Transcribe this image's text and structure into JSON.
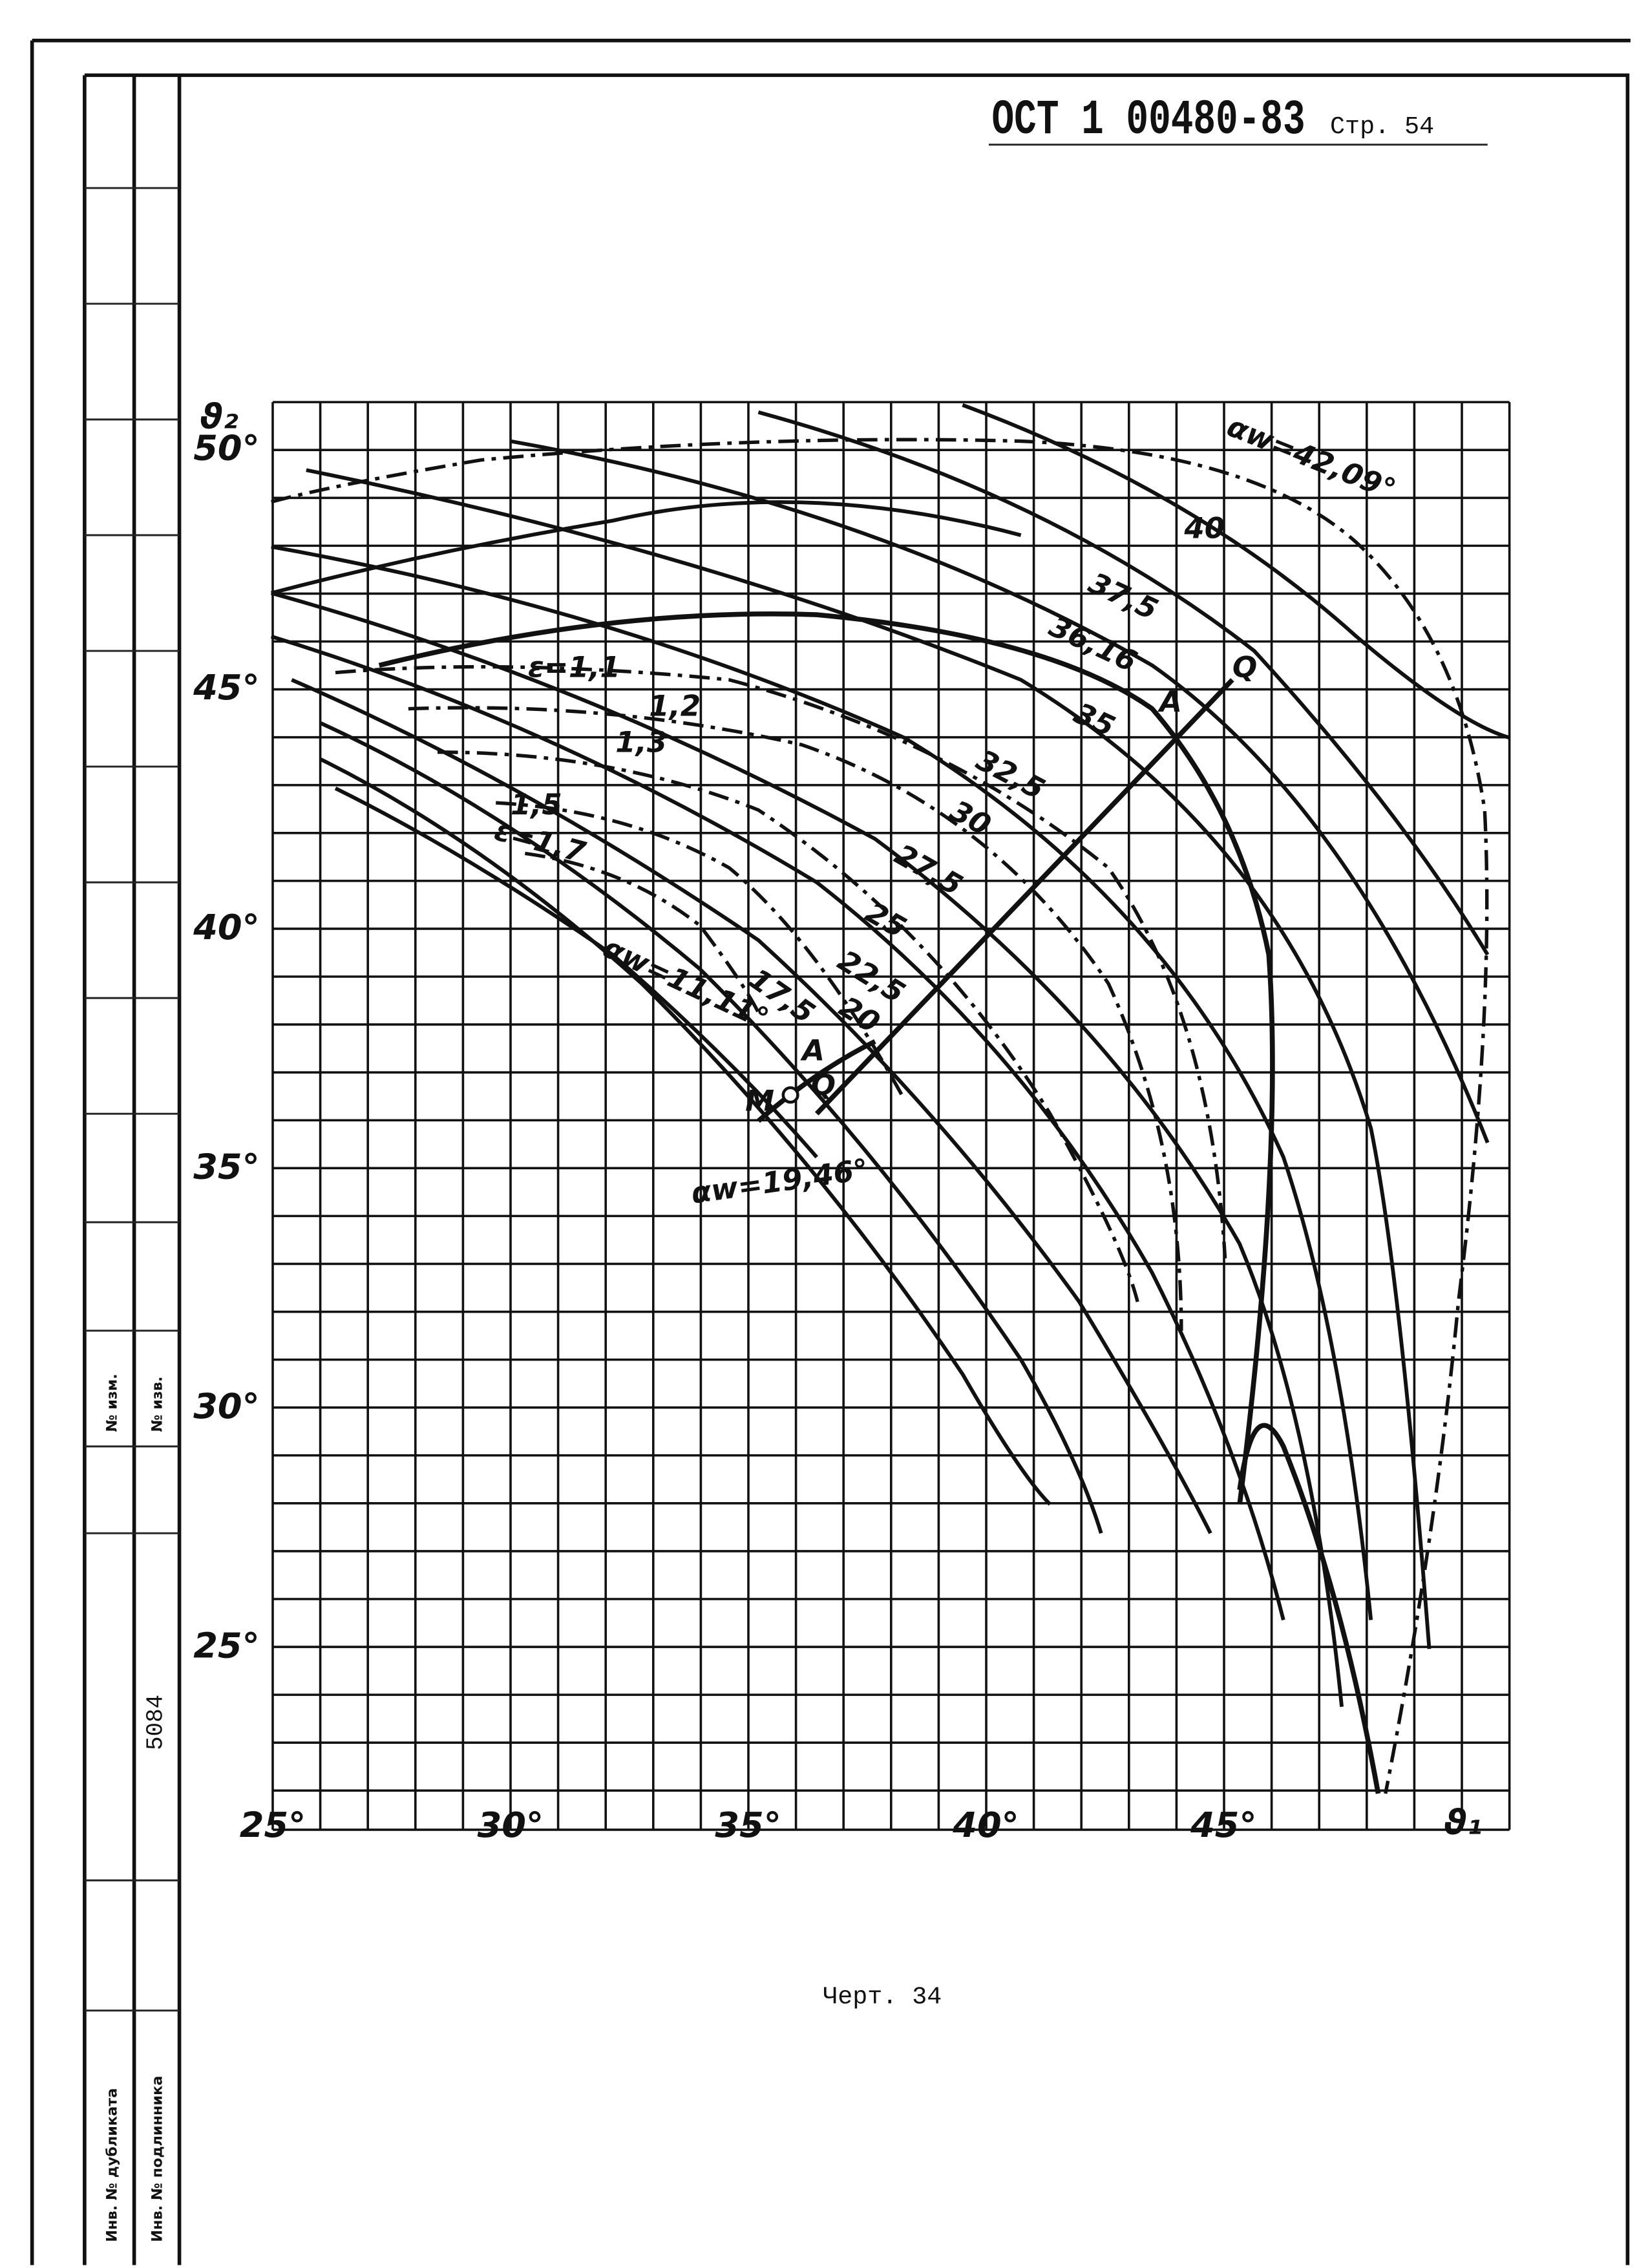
{
  "header": {
    "code": "ОСТ 1 00480-83",
    "page": "Стр. 54"
  },
  "axes": {
    "y_label": "ϑ₂",
    "x_label": "ϑ₁",
    "y_ticks": [
      "50°",
      "45°",
      "40°",
      "35°",
      "30°",
      "25°"
    ],
    "x_ticks": [
      "25°",
      "30°",
      "35°",
      "40°",
      "45°"
    ]
  },
  "curve_labels": {
    "alpha": [
      "αw=42,09°",
      "40",
      "37,5",
      "36,16",
      "35",
      "32,5",
      "30",
      "27,5",
      "25",
      "22,5",
      "20",
      "17,5",
      "αw=11,11°",
      "αw=19,46°"
    ],
    "epsilon": [
      "ε=1,1",
      "1,2",
      "1,3",
      "1,5",
      "ε=1,7"
    ],
    "points": [
      "A",
      "Q",
      "A",
      "Q",
      "M"
    ]
  },
  "caption": "Черт. 34",
  "side": {
    "number": "5084",
    "change": "№ изм.",
    "notice": "№ изв.",
    "duplicate": "Инв. № дубликата",
    "original": "Инв. № подлинника"
  }
}
